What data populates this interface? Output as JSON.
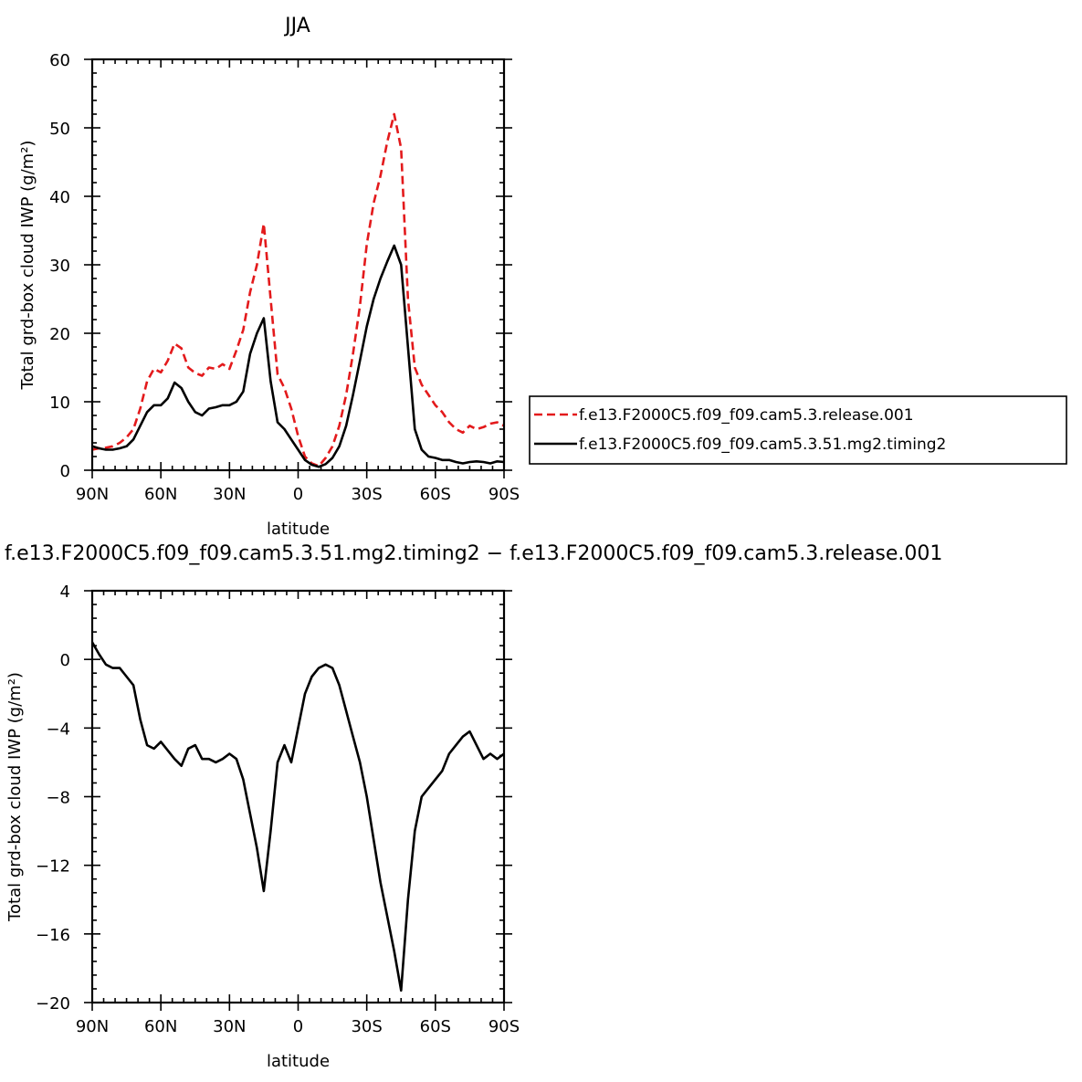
{
  "chart_data": [
    {
      "type": "line",
      "title": "JJA",
      "xlabel": "latitude",
      "ylabel": "Total grd-box cloud IWP (g/m²)",
      "xlim": [
        90,
        -90
      ],
      "ylim": [
        0,
        60
      ],
      "x_ticks": [
        {
          "value": 90,
          "label": "90N"
        },
        {
          "value": 60,
          "label": "60N"
        },
        {
          "value": 30,
          "label": "30N"
        },
        {
          "value": 0,
          "label": "0"
        },
        {
          "value": -30,
          "label": "30S"
        },
        {
          "value": -60,
          "label": "60S"
        },
        {
          "value": -90,
          "label": "90S"
        }
      ],
      "y_ticks": [
        0,
        10,
        20,
        30,
        40,
        50,
        60
      ],
      "legend": "right",
      "series": [
        {
          "name": "f.e13.F2000C5.f09_f09.cam5.3.release.001",
          "color": "#e31a1c",
          "dash": "dashed",
          "x": [
            90,
            87,
            84,
            81,
            78,
            75,
            72,
            69,
            66,
            63,
            60,
            57,
            54,
            51,
            48,
            45,
            42,
            39,
            36,
            33,
            30,
            27,
            24,
            21,
            18,
            15,
            12,
            9,
            6,
            3,
            0,
            -3,
            -6,
            -9,
            -12,
            -15,
            -18,
            -21,
            -24,
            -27,
            -30,
            -33,
            -36,
            -39,
            -42,
            -45,
            -48,
            -51,
            -54,
            -57,
            -60,
            -63,
            -66,
            -69,
            -72,
            -75,
            -78,
            -81,
            -84,
            -87,
            -90
          ],
          "y": [
            3.0,
            3.2,
            3.3,
            3.5,
            4.0,
            4.8,
            6.0,
            9.0,
            13.0,
            14.8,
            14.3,
            16.0,
            18.5,
            17.8,
            15.0,
            14.2,
            13.8,
            15.0,
            14.8,
            15.5,
            14.8,
            17.5,
            20.5,
            26.0,
            30.0,
            36.0,
            25.0,
            14.0,
            12.0,
            9.0,
            5.0,
            2.0,
            1.0,
            0.6,
            1.8,
            3.5,
            6.5,
            11.0,
            17.0,
            24.0,
            33.0,
            39.0,
            43.0,
            48.0,
            52.0,
            47.0,
            25.0,
            15.0,
            12.5,
            11.0,
            9.5,
            8.5,
            7.0,
            6.0,
            5.5,
            6.5,
            6.0,
            6.3,
            6.8,
            7.0,
            6.5
          ]
        },
        {
          "name": "f.e13.F2000C5.f09_f09.cam5.3.51.mg2.timing2",
          "color": "#000000",
          "dash": "solid",
          "x": [
            90,
            87,
            84,
            81,
            78,
            75,
            72,
            69,
            66,
            63,
            60,
            57,
            54,
            51,
            48,
            45,
            42,
            39,
            36,
            33,
            30,
            27,
            24,
            21,
            18,
            15,
            12,
            9,
            6,
            3,
            0,
            -3,
            -6,
            -9,
            -12,
            -15,
            -18,
            -21,
            -24,
            -27,
            -30,
            -33,
            -36,
            -39,
            -42,
            -45,
            -48,
            -51,
            -54,
            -57,
            -60,
            -63,
            -66,
            -69,
            -72,
            -75,
            -78,
            -81,
            -84,
            -87,
            -90
          ],
          "y": [
            3.5,
            3.2,
            3.0,
            3.0,
            3.2,
            3.5,
            4.5,
            6.5,
            8.5,
            9.5,
            9.5,
            10.5,
            12.8,
            12.0,
            10.0,
            8.5,
            8.0,
            9.0,
            9.2,
            9.5,
            9.5,
            10.0,
            11.5,
            17.0,
            20.0,
            22.2,
            13.0,
            7.0,
            6.0,
            4.5,
            3.0,
            1.5,
            0.8,
            0.5,
            0.9,
            1.8,
            3.5,
            6.5,
            11.0,
            16.0,
            21.0,
            25.0,
            28.0,
            30.5,
            32.8,
            30.0,
            18.0,
            6.0,
            3.0,
            2.0,
            1.8,
            1.5,
            1.5,
            1.2,
            1.0,
            1.2,
            1.3,
            1.2,
            1.0,
            1.3,
            1.2
          ]
        }
      ]
    },
    {
      "type": "line",
      "title": "f.e13.F2000C5.f09_f09.cam5.3.51.mg2.timing2 − f.e13.F2000C5.f09_f09.cam5.3.release.001",
      "xlabel": "latitude",
      "ylabel": "Total grd-box cloud IWP (g/m²)",
      "xlim": [
        90,
        -90
      ],
      "ylim": [
        -20,
        4
      ],
      "x_ticks": [
        {
          "value": 90,
          "label": "90N"
        },
        {
          "value": 60,
          "label": "60N"
        },
        {
          "value": 30,
          "label": "30N"
        },
        {
          "value": 0,
          "label": "0"
        },
        {
          "value": -30,
          "label": "30S"
        },
        {
          "value": -60,
          "label": "60S"
        },
        {
          "value": -90,
          "label": "90S"
        }
      ],
      "y_ticks": [
        4,
        0,
        -4,
        -8,
        -12,
        -16,
        -20
      ],
      "series": [
        {
          "color": "#000000",
          "dash": "solid",
          "x": [
            90,
            87,
            84,
            81,
            78,
            75,
            72,
            69,
            66,
            63,
            60,
            57,
            54,
            51,
            48,
            45,
            42,
            39,
            36,
            33,
            30,
            27,
            24,
            21,
            18,
            15,
            12,
            9,
            6,
            3,
            0,
            -3,
            -6,
            -9,
            -12,
            -15,
            -18,
            -21,
            -24,
            -27,
            -30,
            -33,
            -36,
            -39,
            -42,
            -45,
            -48,
            -51,
            -54,
            -57,
            -60,
            -63,
            -66,
            -69,
            -72,
            -75,
            -78,
            -81,
            -84,
            -87,
            -90
          ],
          "y": [
            1.0,
            0.3,
            -0.3,
            -0.5,
            -0.5,
            -1.0,
            -1.5,
            -3.5,
            -5.0,
            -5.2,
            -4.8,
            -5.3,
            -5.8,
            -6.2,
            -5.2,
            -5.0,
            -5.8,
            -5.8,
            -6.0,
            -5.8,
            -5.5,
            -5.8,
            -7.0,
            -9.0,
            -11.0,
            -13.5,
            -10.0,
            -6.0,
            -5.0,
            -6.0,
            -4.0,
            -2.0,
            -1.0,
            -0.5,
            -0.3,
            -0.5,
            -1.5,
            -3.0,
            -4.5,
            -6.0,
            -8.0,
            -10.5,
            -13.0,
            -15.0,
            -17.0,
            -19.3,
            -14.0,
            -10.0,
            -8.0,
            -7.5,
            -7.0,
            -6.5,
            -5.5,
            -5.0,
            -4.5,
            -4.2,
            -5.0,
            -5.8,
            -5.5,
            -5.8,
            -5.5
          ]
        }
      ]
    }
  ]
}
